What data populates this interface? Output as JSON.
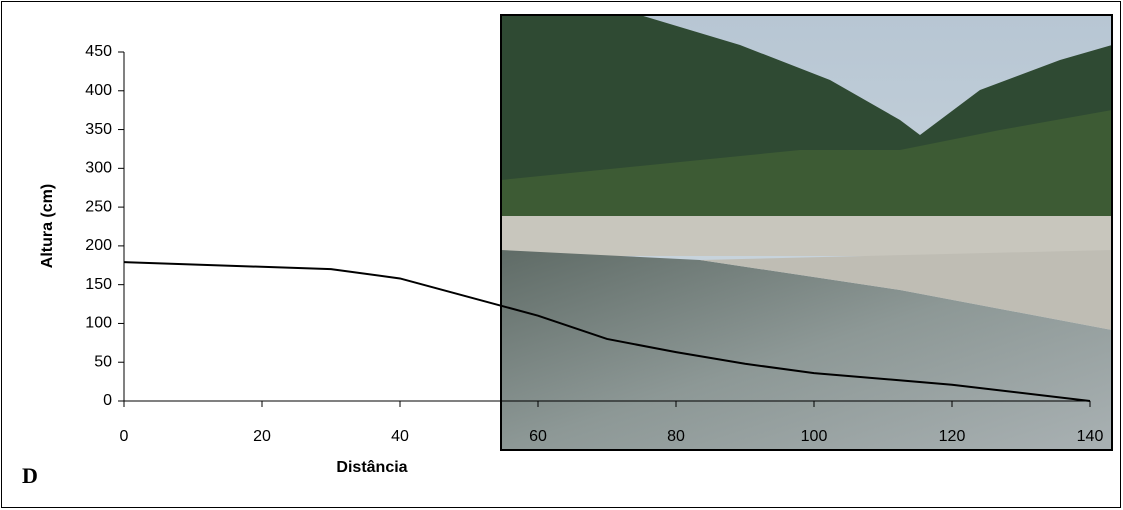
{
  "chart_data": {
    "type": "line",
    "panel_label": "D",
    "x_label": "Distância",
    "y_label": "Altura (cm)",
    "x": [
      0,
      30,
      40,
      60,
      70,
      80,
      90,
      100,
      120,
      140
    ],
    "values": [
      179,
      170,
      158,
      110,
      80,
      63,
      48,
      36,
      21,
      0
    ],
    "color": "#000000",
    "xlim": [
      0,
      140
    ],
    "xticks": [
      0,
      20,
      40,
      60,
      80,
      100,
      120,
      140
    ],
    "ylim": [
      0,
      450
    ],
    "yticks": [
      0,
      50,
      100,
      150,
      200,
      250,
      300,
      350,
      400,
      450
    ]
  }
}
